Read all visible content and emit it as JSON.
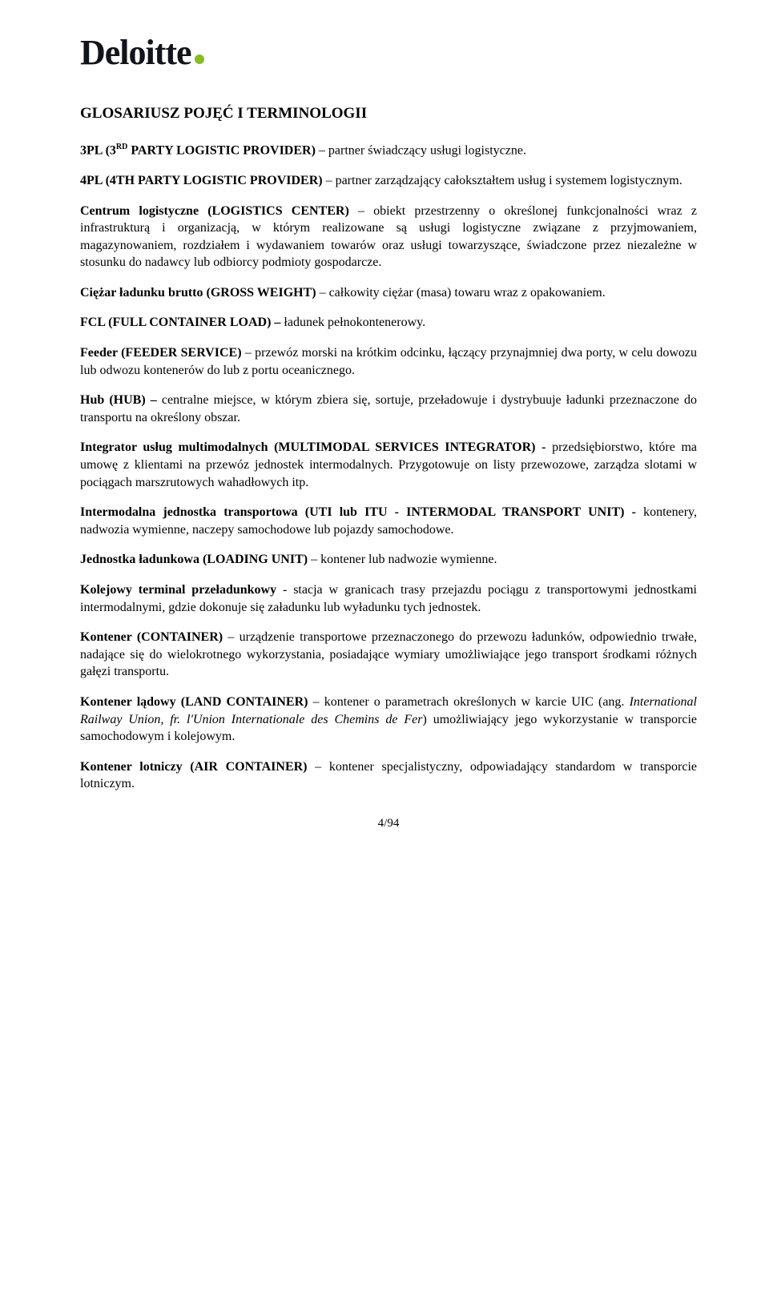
{
  "logo": {
    "text": "Deloitte",
    "dot_color": "#86bc25"
  },
  "title": "GLOSARIUSZ POJĘĆ I TERMINOLOGII",
  "entries": [
    {
      "term": "3PL (3",
      "sup": "RD",
      "term2": " PARTY LOGISTIC PROVIDER)",
      "def": " – partner świadczący usługi logistyczne."
    },
    {
      "term": "4PL (4TH PARTY LOGISTIC PROVIDER)",
      "def": " – partner zarządzający całokształtem usług i systemem logistycznym."
    },
    {
      "term": "Centrum logistyczne (LOGISTICS CENTER)",
      "def": " – obiekt przestrzenny o określonej funkcjonalności wraz z infrastrukturą i organizacją, w którym realizowane są usługi logistyczne związane z przyjmowaniem, magazynowaniem, rozdziałem i wydawaniem towarów oraz usługi towarzyszące, świadczone przez niezależne w stosunku do nadawcy lub odbiorcy podmioty gospodarcze."
    },
    {
      "term": "Ciężar ładunku brutto (GROSS WEIGHT)",
      "def": " – całkowity ciężar (masa) towaru wraz z opakowaniem."
    },
    {
      "term": "FCL (FULL CONTAINER LOAD) – ",
      "def": "ładunek pełnokontenerowy."
    },
    {
      "term": "Feeder (FEEDER SERVICE)",
      "def": " – przewóz morski na krótkim odcinku, łączący przynajmniej dwa porty, w celu dowozu lub odwozu kontenerów do lub z portu oceanicznego."
    },
    {
      "term": "Hub (HUB) – ",
      "def": "centralne miejsce, w którym zbiera się, sortuje, przeładowuje i dystrybuuje ładunki przeznaczone do transportu na określony obszar."
    },
    {
      "term": "Integrator usług multimodalnych (MULTIMODAL SERVICES INTEGRATOR) - ",
      "def": "przedsiębiorstwo, które ma umowę z klientami na przewóz jednostek intermodalnych. Przygotowuje on listy przewozowe, zarządza slotami w pociągach marszrutowych wahadłowych itp."
    },
    {
      "term": "Intermodalna jednostka transportowa (UTI lub ITU - INTERMODAL TRANSPORT UNIT) - ",
      "def": "kontenery, nadwozia wymienne, naczepy samochodowe lub pojazdy samochodowe."
    },
    {
      "term": "Jednostka ładunkowa (LOADING UNIT)",
      "def": " – kontener lub nadwozie wymienne."
    },
    {
      "term": "Kolejowy terminal przeładunkowy",
      "def": " - stacja w granicach trasy przejazdu pociągu z transportowymi jednostkami intermodalnymi, gdzie dokonuje się załadunku lub wyładunku tych jednostek."
    },
    {
      "term": "Kontener (CONTAINER)",
      "def": " – urządzenie transportowe przeznaczonego do przewozu ładunków, odpowiednio trwałe, nadające się do wielokrotnego wykorzystania, posiadające wymiary umożliwiające jego transport środkami różnych gałęzi transportu."
    },
    {
      "term": "Kontener lądowy (LAND CONTAINER)",
      "def": " – kontener o parametrach określonych w karcie UIC (ang. ",
      "italic": "International Railway Union, fr. l'Union Internationale des Chemins de Fer",
      "def2": ") umożliwiający jego wykorzystanie w transporcie samochodowym i kolejowym."
    },
    {
      "term": "Kontener lotniczy (AIR CONTAINER)",
      "def": " – kontener specjalistyczny, odpowiadający standardom w transporcie lotniczym."
    }
  ],
  "footer": "4/94"
}
